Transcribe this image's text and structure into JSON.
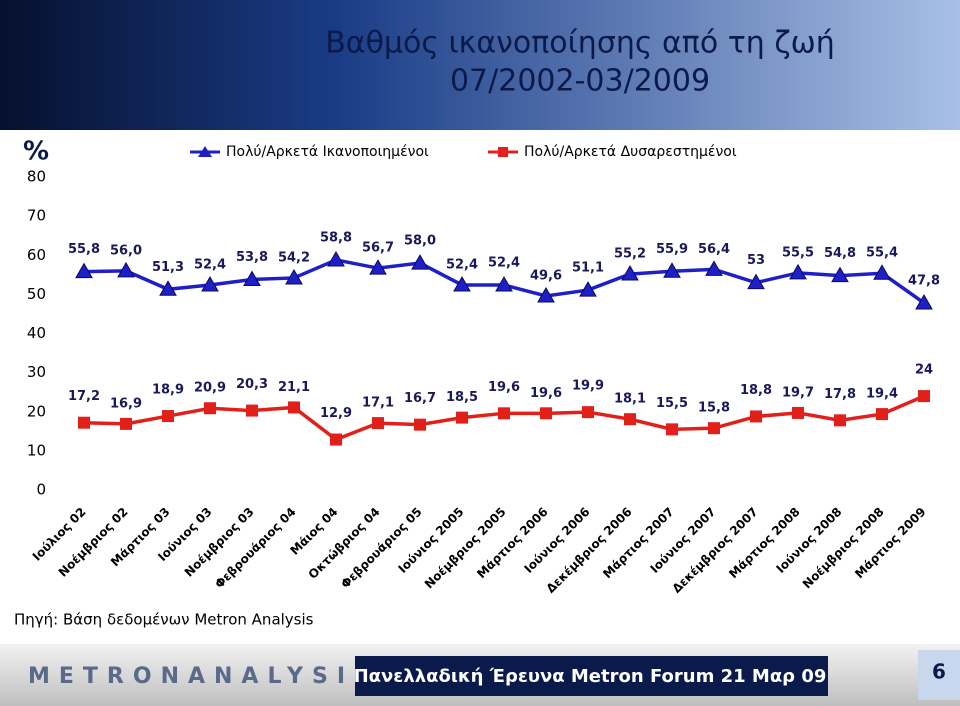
{
  "chart_data": {
    "type": "line",
    "title": "Βαθμός ικανοποίησης από τη ζωή",
    "subtitle": "07/2002-03/2009",
    "y_label": "%",
    "categories": [
      "Ιούλιος 02",
      "Νοέμβριος 02",
      "Μάρτιος 03",
      "Ιούνιος 03",
      "Νοέμβριος 03",
      "Φεβρουάριος 04",
      "Μάιος 04",
      "Οκτώβριος 04",
      "Φεβρουάριος 05",
      "Ιούνιος 2005",
      "Νοέμβριος 2005",
      "Μάρτιος 2006",
      "Ιούνιος 2006",
      "Δεκέμβριος 2006",
      "Μάρτιος 2007",
      "Ιούνιος 2007",
      "Δεκέμβριος 2007",
      "Μάρτιος 2008",
      "Ιούνιος 2008",
      "Νοέμβριος 2008",
      "Μάρτιος 2009"
    ],
    "series": [
      {
        "name": "Πολύ/Αρκετά Ικανοποιημένοι",
        "color": "#1f1fc8",
        "marker": "triangle",
        "values": [
          55.8,
          56.0,
          51.3,
          52.4,
          53.8,
          54.2,
          58.8,
          56.7,
          58.0,
          52.4,
          52.4,
          49.6,
          51.1,
          55.2,
          55.9,
          56.4,
          53,
          55.5,
          54.8,
          55.4,
          47.8
        ],
        "value_labels": [
          "55,8",
          "56,0",
          "51,3",
          "52,4",
          "53,8",
          "54,2",
          "58,8",
          "56,7",
          "58,0",
          "52,4",
          "52,4",
          "49,6",
          "51,1",
          "55,2",
          "55,9",
          "56,4",
          "53",
          "55,5",
          "54,8",
          "55,4",
          "47,8"
        ]
      },
      {
        "name": "Πολύ/Αρκετά Δυσαρεστημένοι",
        "color": "#e2201a",
        "marker": "square",
        "values": [
          17.2,
          16.9,
          18.9,
          20.9,
          20.3,
          21.1,
          12.9,
          17.1,
          16.7,
          18.5,
          19.6,
          19.6,
          19.9,
          18.1,
          15.5,
          15.8,
          18.8,
          19.7,
          17.8,
          19.4,
          24
        ],
        "value_labels": [
          "17,2",
          "16,9",
          "18,9",
          "20,9",
          "20,3",
          "21,1",
          "12,9",
          "17,1",
          "16,7",
          "18,5",
          "19,6",
          "19,6",
          "19,9",
          "18,1",
          "15,5",
          "15,8",
          "18,8",
          "19,7",
          "17,8",
          "19,4",
          "24"
        ]
      }
    ],
    "ylim": [
      0,
      80
    ],
    "yticks": [
      0,
      10,
      20,
      30,
      40,
      50,
      60,
      70,
      80
    ],
    "source": "Πηγή: Βάση δεδομένων Metron Analysis"
  },
  "footer": {
    "logo": "METRONANALYSIS",
    "text": "Πανελλαδική Έρευνα Metron Forum 21 Μαρ 09",
    "page": "6"
  }
}
